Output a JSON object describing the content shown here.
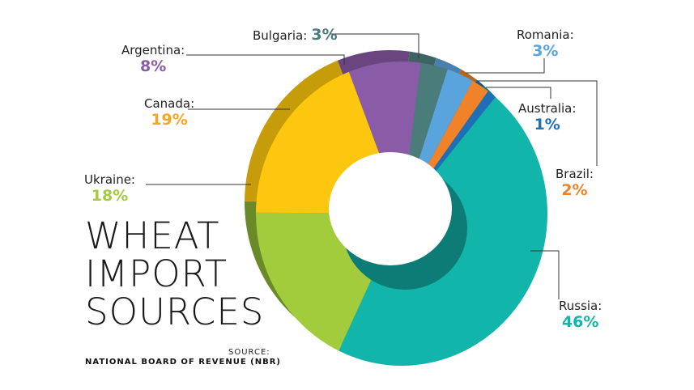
{
  "chart_data": {
    "type": "pie",
    "title": "WHEAT IMPORT SOURCES",
    "title_lines": [
      "WHEAT",
      "IMPORT",
      "SOURCES"
    ],
    "source_label": "SOURCE:",
    "source": "NATIONAL BOARD OF REVENUE (NBR)",
    "donut": true,
    "slices": [
      {
        "label": "Russia:",
        "value": 46,
        "text": "46%",
        "color": "#12b5aa",
        "dark": "#0e7c76"
      },
      {
        "label": "Ukraine:",
        "value": 18,
        "text": "18%",
        "color": "#a3cc3c",
        "dark": "#6a8a2a"
      },
      {
        "label": "Canada:",
        "value": 19,
        "text": "19%",
        "color": "#fdc70f",
        "dark": "#c79c0a",
        "label_color": "#f5a623"
      },
      {
        "label": "Argentina:",
        "value": 8,
        "text": "8%",
        "color": "#8a5ca8",
        "dark": "#6a4580"
      },
      {
        "label": "Bulgaria:",
        "value": 3,
        "text": "3%",
        "color": "#4a7c7a",
        "dark": "#3d6462"
      },
      {
        "label": "Romania:",
        "value": 3,
        "text": "3%",
        "color": "#5aa4dd",
        "dark": "#4a80b0"
      },
      {
        "label": "Brazil:",
        "value": 2,
        "text": "2%",
        "color": "#f0832a",
        "dark": "#b8631e"
      },
      {
        "label": "Australia:",
        "value": 1,
        "text": "1%",
        "color": "#1f6fb8",
        "dark": "#17538a"
      }
    ]
  }
}
